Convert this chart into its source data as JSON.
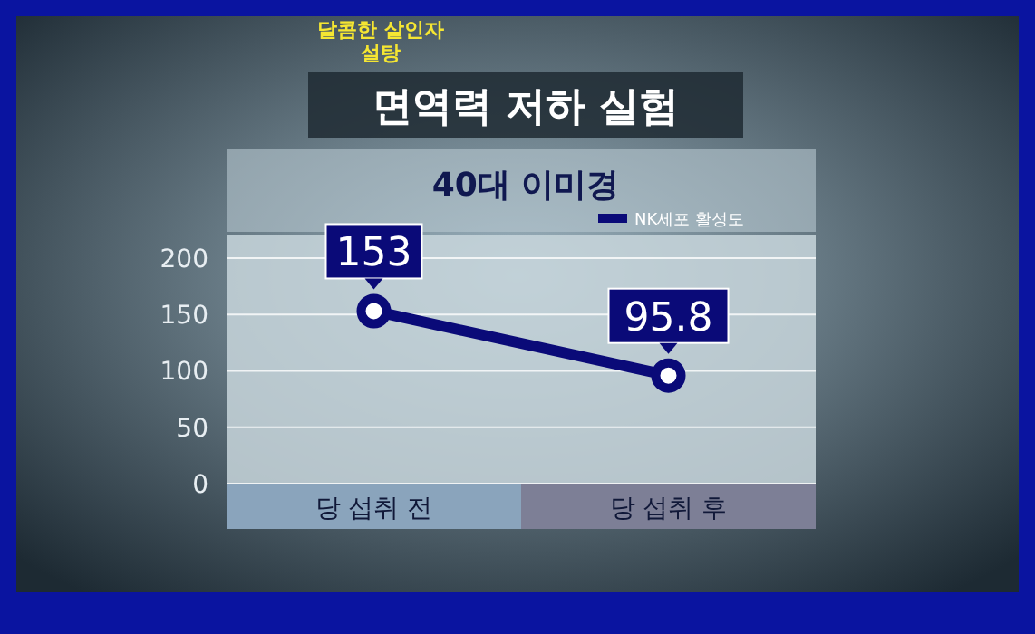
{
  "chart_data": {
    "type": "line",
    "title": "면역력 저하 실험",
    "subtitle": "40대 이미경",
    "annotations": [
      "달콤한 살인자",
      "설탕"
    ],
    "categories": [
      "당 섭취 전",
      "당 섭취 후"
    ],
    "series": [
      {
        "name": "NK세포 활성도",
        "color": "#0a0a78",
        "values": [
          153,
          95.8
        ]
      }
    ],
    "ylim": [
      0,
      220
    ],
    "yticks": [
      0,
      50,
      100,
      150,
      200
    ],
    "grid": "y",
    "legend": "top right",
    "marker": "circle",
    "line_style": "solid",
    "data_labels": true
  }
}
